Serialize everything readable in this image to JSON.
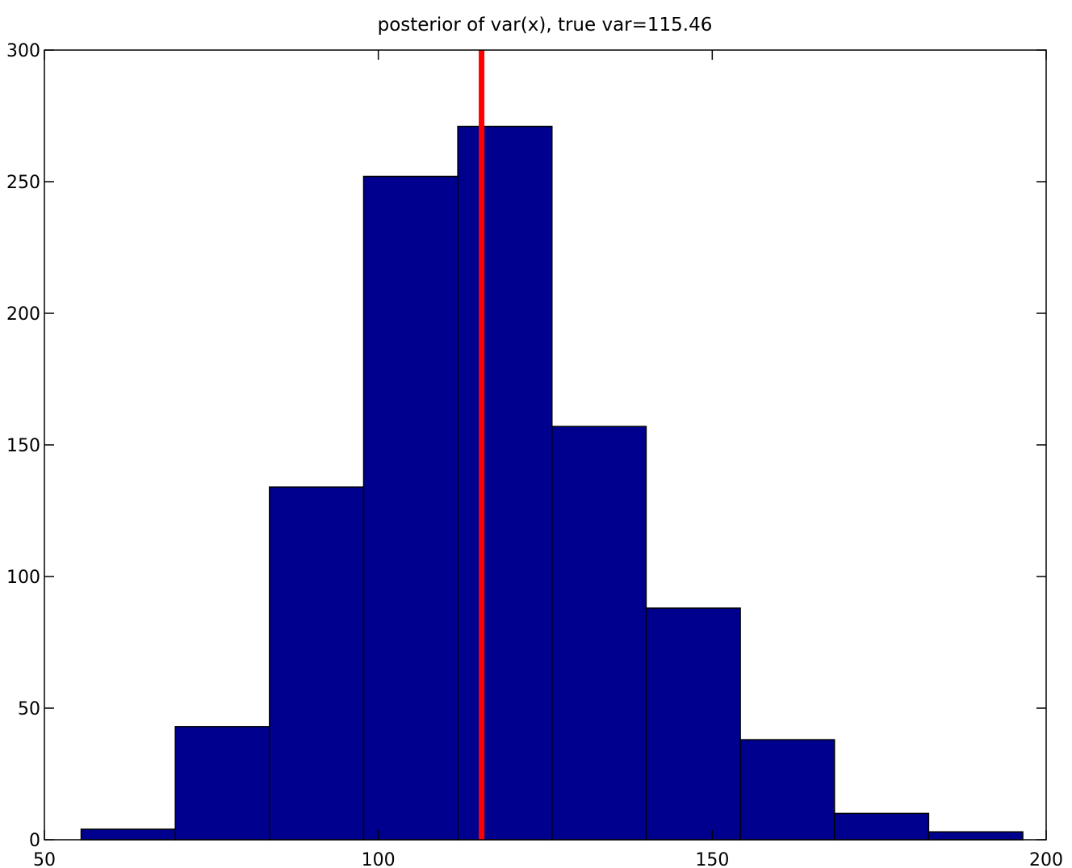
{
  "chart_data": {
    "type": "bar",
    "title": "posterior of var(x), true var=115.46",
    "xlabel": "",
    "ylabel": "",
    "xlim": [
      50,
      200
    ],
    "ylim": [
      0,
      300
    ],
    "xticks": [
      50,
      100,
      150,
      200
    ],
    "yticks": [
      0,
      50,
      100,
      150,
      200,
      250,
      300
    ],
    "bins": [
      {
        "x0": 55.5,
        "x1": 69.6,
        "count": 4
      },
      {
        "x0": 69.6,
        "x1": 83.7,
        "count": 43
      },
      {
        "x0": 83.7,
        "x1": 97.8,
        "count": 134
      },
      {
        "x0": 97.8,
        "x1": 111.9,
        "count": 252
      },
      {
        "x0": 111.9,
        "x1": 126.0,
        "count": 271
      },
      {
        "x0": 126.0,
        "x1": 140.1,
        "count": 157
      },
      {
        "x0": 140.1,
        "x1": 154.2,
        "count": 88
      },
      {
        "x0": 154.2,
        "x1": 168.3,
        "count": 38
      },
      {
        "x0": 168.3,
        "x1": 182.4,
        "count": 10
      },
      {
        "x0": 182.4,
        "x1": 196.5,
        "count": 3
      }
    ],
    "reference_line": {
      "x": 115.46,
      "color": "#ff0000"
    },
    "bar_color": "#00008f",
    "grid": false
  }
}
